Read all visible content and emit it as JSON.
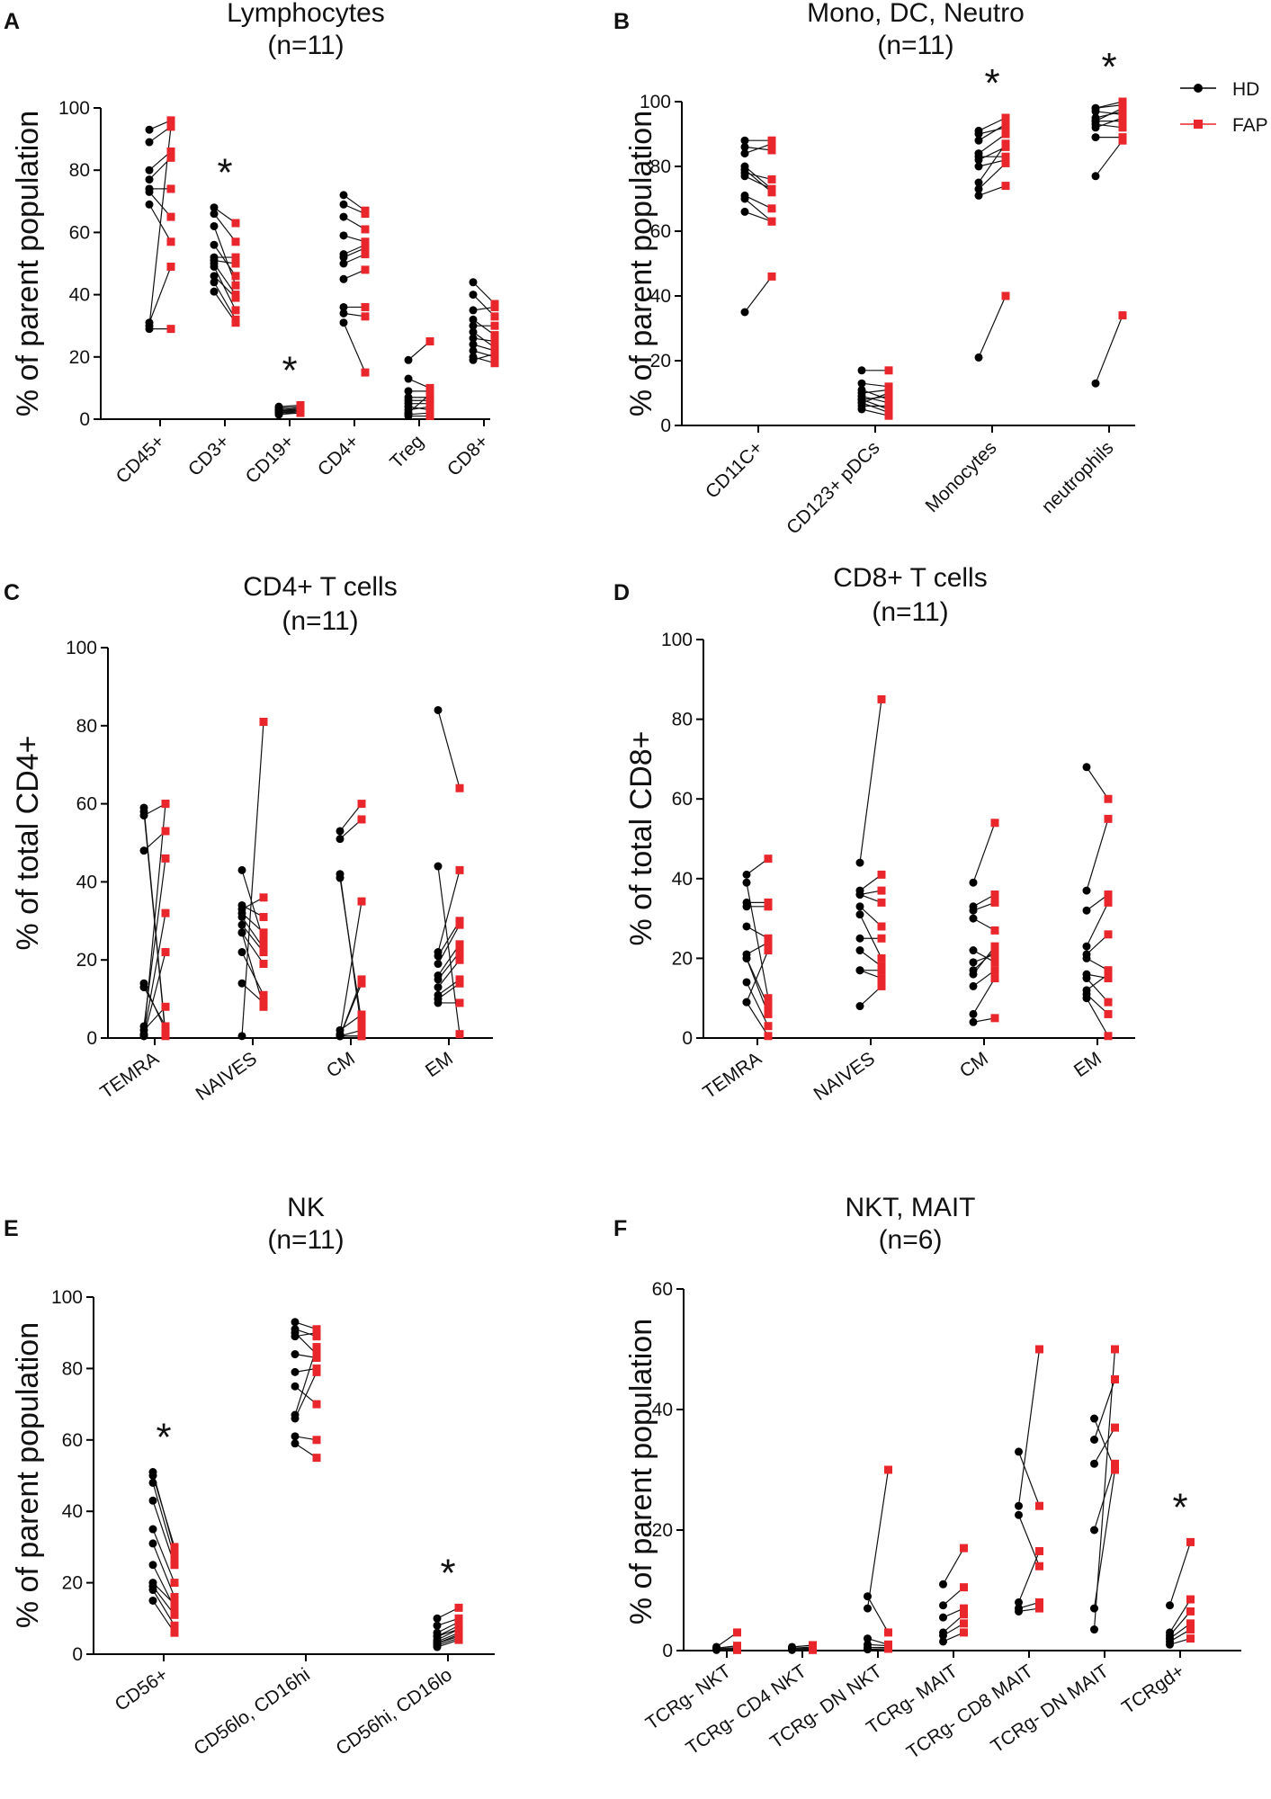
{
  "legend": {
    "hd": {
      "label": "HD",
      "color": "#000000",
      "marker": "circle"
    },
    "fap": {
      "label": "FAP",
      "color": "#e8262b",
      "marker": "square"
    }
  },
  "chart_data": [
    {
      "id": "A",
      "letter": "A",
      "type": "scatter",
      "paired": true,
      "title": "Lymphocytes",
      "subtitle": "(n=11)",
      "ylabel": "% of parent population",
      "ylim": [
        0,
        100
      ],
      "yticks": [
        0,
        20,
        40,
        60,
        80,
        100
      ],
      "xtick_rotation": -45,
      "categories": [
        {
          "label": "CD45+",
          "significant": false,
          "hd": [
            93,
            89,
            80,
            77,
            74,
            74,
            73,
            69,
            31,
            30,
            29
          ],
          "fap": [
            96,
            94,
            86,
            84,
            74,
            74,
            65,
            57,
            49,
            94,
            29
          ]
        },
        {
          "label": "CD3+",
          "significant": true,
          "hd": [
            68,
            66,
            62,
            56,
            52,
            51,
            50,
            49,
            46,
            44,
            41
          ],
          "fap": [
            63,
            57,
            43,
            46,
            52,
            50,
            40,
            35,
            39,
            32,
            31
          ]
        },
        {
          "label": "CD19+",
          "significant": true,
          "hd": [
            4,
            3.5,
            3,
            3,
            2.5,
            2.5,
            2,
            2,
            2,
            1.5,
            1.5
          ],
          "fap": [
            4.5,
            4,
            3.5,
            3.5,
            3.5,
            3,
            3,
            3,
            2.5,
            2.5,
            2
          ]
        },
        {
          "label": "CD4+",
          "significant": false,
          "hd": [
            72,
            69,
            65,
            59,
            53,
            52,
            50,
            45,
            36,
            34,
            31
          ],
          "fap": [
            67,
            66,
            61,
            57,
            56,
            55,
            53,
            48,
            36,
            33,
            15
          ]
        },
        {
          "label": "Treg",
          "significant": false,
          "hd": [
            19,
            13,
            9,
            7,
            6,
            5,
            4,
            3,
            2,
            1.5,
            1
          ],
          "fap": [
            25,
            10,
            9,
            7,
            6,
            5,
            3,
            4,
            8,
            2,
            1
          ]
        },
        {
          "label": "CD8+",
          "significant": false,
          "hd": [
            44,
            40,
            35,
            32,
            30,
            28,
            26,
            24,
            22,
            20,
            19
          ],
          "fap": [
            37,
            33,
            36,
            27,
            30,
            23,
            25,
            22,
            20,
            18,
            21
          ]
        }
      ]
    },
    {
      "id": "B",
      "letter": "B",
      "type": "scatter",
      "paired": true,
      "title": "Mono, DC, Neutro",
      "subtitle": "(n=11)",
      "ylabel": "% of parent population",
      "ylim": [
        0,
        100
      ],
      "yticks": [
        0,
        20,
        40,
        60,
        80,
        100
      ],
      "xtick_rotation": -45,
      "categories": [
        {
          "label": "CD11C+",
          "significant": false,
          "hd": [
            88,
            86,
            84,
            80,
            79,
            78,
            77,
            71,
            70,
            66,
            35
          ],
          "fap": [
            88,
            85,
            87,
            73,
            72,
            76,
            73,
            67,
            63,
            63,
            46
          ]
        },
        {
          "label": "CD123+ pDCs",
          "significant": false,
          "hd": [
            17,
            13,
            11,
            10,
            9,
            8,
            8,
            7,
            7,
            6,
            5
          ],
          "fap": [
            17,
            12,
            8,
            11,
            7,
            9,
            5,
            4,
            10,
            6,
            3
          ]
        },
        {
          "label": "Monocytes",
          "significant": true,
          "hd": [
            91,
            90,
            88,
            84,
            83,
            82,
            80,
            75,
            73,
            71,
            21
          ],
          "fap": [
            95,
            92,
            93,
            90,
            83,
            86,
            82,
            87,
            81,
            74,
            40
          ]
        },
        {
          "label": "neutrophils",
          "significant": true,
          "hd": [
            98,
            98,
            97,
            95,
            94,
            94,
            93,
            92,
            89,
            77,
            13
          ],
          "fap": [
            99,
            100,
            96,
            97,
            98,
            94,
            92,
            95,
            89,
            88,
            34
          ]
        }
      ]
    },
    {
      "id": "C",
      "letter": "C",
      "type": "scatter",
      "paired": true,
      "title": "CD4+ T cells",
      "subtitle": "(n=11)",
      "ylabel": "% of total CD4+",
      "ylim": [
        0,
        100
      ],
      "yticks": [
        0,
        20,
        40,
        60,
        80,
        100
      ],
      "xtick_rotation": -35,
      "categories": [
        {
          "label": "TEMRA",
          "significant": false,
          "hd": [
            59,
            58,
            57,
            48,
            14,
            13,
            3,
            2,
            1,
            0.5,
            0.5
          ],
          "fap": [
            1,
            0.5,
            60,
            53,
            2,
            3,
            46,
            8,
            32,
            22,
            60
          ]
        },
        {
          "label": "NAIVES",
          "significant": false,
          "hd": [
            43,
            34,
            33,
            32,
            31,
            29,
            27,
            22,
            14,
            27,
            0.5
          ],
          "fap": [
            25,
            31,
            36,
            27,
            23,
            22,
            19,
            11,
            9,
            8,
            81
          ]
        },
        {
          "label": "CM",
          "significant": false,
          "hd": [
            53,
            51,
            42,
            41,
            2,
            1,
            0.5,
            0.5,
            0.5,
            0.5,
            0.5
          ],
          "fap": [
            60,
            56,
            2,
            4,
            6,
            35,
            15,
            14,
            2,
            0.5,
            0.5
          ]
        },
        {
          "label": "EM",
          "significant": false,
          "hd": [
            84,
            44,
            22,
            21,
            19,
            16,
            15,
            13,
            11,
            10,
            9
          ],
          "fap": [
            64,
            1,
            43,
            30,
            29,
            24,
            22,
            20,
            15,
            14,
            9
          ]
        }
      ]
    },
    {
      "id": "D",
      "letter": "D",
      "type": "scatter",
      "paired": true,
      "title": "CD8+ T cells",
      "subtitle": "(n=11)",
      "ylabel": "% of total CD8+",
      "ylim": [
        0,
        100
      ],
      "yticks": [
        0,
        20,
        40,
        60,
        80,
        100
      ],
      "xtick_rotation": -35,
      "categories": [
        {
          "label": "TEMRA",
          "significant": false,
          "hd": [
            41,
            39,
            34,
            33,
            28,
            21,
            20,
            20,
            14,
            9,
            9
          ],
          "fap": [
            45,
            10,
            34,
            33,
            25,
            24,
            8,
            6,
            3,
            22,
            0.5
          ]
        },
        {
          "label": "NAIVES",
          "significant": false,
          "hd": [
            44,
            37,
            36,
            36,
            33,
            31,
            25,
            22,
            17,
            17,
            8
          ],
          "fap": [
            85,
            41,
            37,
            34,
            28,
            20,
            25,
            18,
            15,
            17,
            13
          ]
        },
        {
          "label": "CM",
          "significant": false,
          "hd": [
            39,
            33,
            32,
            30,
            22,
            19,
            17,
            16,
            13,
            6,
            4
          ],
          "fap": [
            54,
            36,
            34,
            27,
            19,
            21,
            22,
            23,
            17,
            15,
            5
          ]
        },
        {
          "label": "EM",
          "significant": false,
          "hd": [
            68,
            37,
            32,
            23,
            21,
            20,
            16,
            15,
            12,
            11,
            10
          ],
          "fap": [
            60,
            55,
            36,
            34,
            26,
            17,
            15,
            9,
            16,
            6,
            0.5
          ]
        }
      ]
    },
    {
      "id": "E",
      "letter": "E",
      "type": "scatter",
      "paired": true,
      "title": "NK",
      "subtitle": "(n=11)",
      "ylabel": "% of parent population",
      "ylim": [
        0,
        100
      ],
      "yticks": [
        0,
        20,
        40,
        60,
        80,
        100
      ],
      "xtick_rotation": -35,
      "categories": [
        {
          "label": "CD56+",
          "significant": true,
          "hd": [
            51,
            50,
            48,
            43,
            35,
            31,
            25,
            20,
            19,
            18,
            15
          ],
          "fap": [
            29,
            30,
            27,
            25,
            20,
            16,
            13,
            14,
            11,
            8,
            6
          ]
        },
        {
          "label": "CD56lo, CD16hi",
          "significant": false,
          "hd": [
            93,
            91,
            90,
            89,
            84,
            79,
            75,
            67,
            66,
            61,
            59
          ],
          "fap": [
            91,
            89,
            84,
            90,
            83,
            80,
            70,
            86,
            79,
            60,
            55
          ]
        },
        {
          "label": "CD56hi, CD16lo",
          "significant": true,
          "hd": [
            10,
            8,
            6,
            5,
            5,
            4,
            3.5,
            3,
            3,
            2.5,
            2
          ],
          "fap": [
            13,
            10,
            9,
            8,
            7,
            7,
            6,
            5.5,
            5,
            4.5,
            4
          ]
        }
      ]
    },
    {
      "id": "F",
      "letter": "F",
      "type": "scatter",
      "paired": true,
      "title": "NKT, MAIT",
      "subtitle": "(n=6)",
      "ylabel": "% of parent population",
      "ylim": [
        0,
        60
      ],
      "yticks": [
        0,
        20,
        40,
        60
      ],
      "xtick_rotation": -35,
      "categories": [
        {
          "label": "TCRg- NKT",
          "significant": false,
          "hd": [
            0.6,
            0.4,
            0.3,
            0.2,
            0.2,
            0.1
          ],
          "fap": [
            3,
            0.8,
            0.5,
            0.3,
            0.2,
            0.1
          ]
        },
        {
          "label": "TCRg- CD4 NKT",
          "significant": false,
          "hd": [
            0.6,
            0.4,
            0.3,
            0.2,
            0.2,
            0.1
          ],
          "fap": [
            0.9,
            0.6,
            0.4,
            0.3,
            0.2,
            0.1
          ]
        },
        {
          "label": "TCRg- DN NKT",
          "significant": false,
          "hd": [
            9,
            7,
            2,
            1,
            0.5,
            0.2
          ],
          "fap": [
            3,
            30,
            1,
            0.8,
            0.5,
            0.3
          ]
        },
        {
          "label": "TCRg- MAIT",
          "significant": false,
          "hd": [
            11,
            7.5,
            5.5,
            3,
            2.5,
            1.5
          ],
          "fap": [
            17,
            10.5,
            7,
            6,
            4.5,
            3
          ]
        },
        {
          "label": "TCRg- CD8 MAIT",
          "significant": false,
          "hd": [
            33,
            24,
            22.5,
            8,
            7,
            6.5
          ],
          "fap": [
            24,
            50,
            14,
            16.5,
            8,
            7
          ]
        },
        {
          "label": "TCRg- DN MAIT",
          "significant": false,
          "hd": [
            38.5,
            35,
            31,
            20,
            7,
            3.5
          ],
          "fap": [
            30,
            45,
            37,
            31,
            30,
            50
          ]
        },
        {
          "label": "TCRgd+",
          "significant": true,
          "hd": [
            7.5,
            3,
            2.5,
            2,
            1.5,
            1
          ],
          "fap": [
            18,
            8.5,
            6.5,
            4.5,
            3.5,
            2
          ]
        }
      ]
    }
  ]
}
